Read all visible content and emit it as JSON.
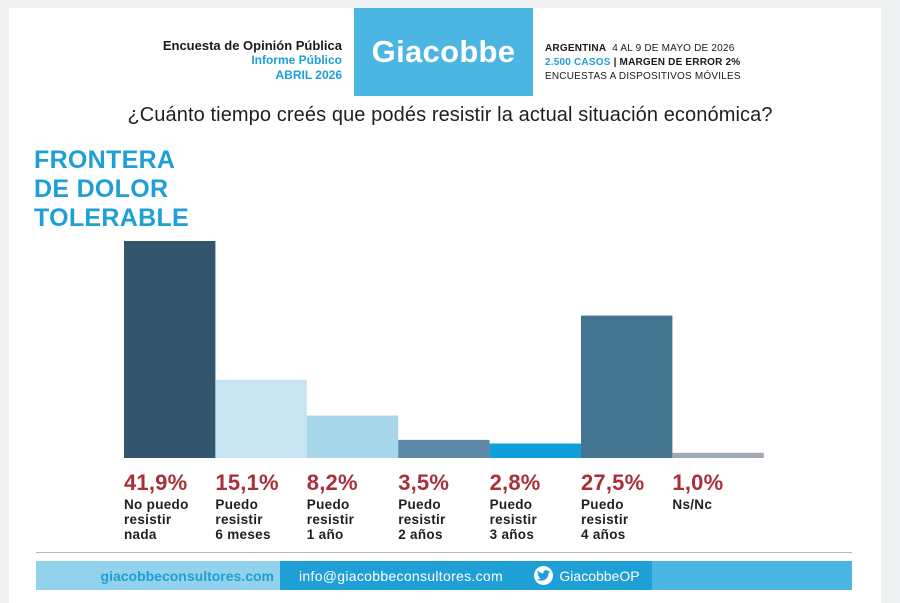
{
  "header": {
    "survey_title": "Encuesta de Opinión Pública",
    "report_type": "Informe Público",
    "period": "ABRIL 2026",
    "logo_text": "Giacobbe",
    "country": "ARGENTINA",
    "dates": "4 AL 9 DE MAYO DE 2026",
    "cases": "2.500 CASOS",
    "margin": "| MARGEN DE ERROR 2%",
    "method": "ENCUESTAS A DISPOSITIVOS MÓVILES"
  },
  "question": "¿Cuánto tiempo creés que podés resistir la actual situación económica?",
  "section_title": [
    "FRONTERA",
    "DE DOLOR",
    "TOLERABLE"
  ],
  "chart_data": {
    "type": "bar",
    "categories": [
      "No puedo resistir nada",
      "Puedo resistir 6 meses",
      "Puedo resistir 1 año",
      "Puedo resistir 2 años",
      "Puedo resistir 3 años",
      "Puedo resistir 4 años",
      "Ns/Nc"
    ],
    "category_lines": [
      [
        "No puedo",
        "resistir",
        "nada"
      ],
      [
        "Puedo",
        "resistir",
        "6 meses"
      ],
      [
        "Puedo",
        "resistir",
        "1 año"
      ],
      [
        "Puedo",
        "resistir",
        "2 años"
      ],
      [
        "Puedo",
        "resistir",
        "3 años"
      ],
      [
        "Puedo",
        "resistir",
        "4 años"
      ],
      [
        "Ns/Nc"
      ]
    ],
    "values": [
      41.9,
      15.1,
      8.2,
      3.5,
      2.8,
      27.5,
      1.0
    ],
    "labels": [
      "41,9%",
      "15,1%",
      "8,2%",
      "3,5%",
      "2,8%",
      "27,5%",
      "1,0%"
    ],
    "colors": [
      "#32566e",
      "#c6e4f1",
      "#a7d6eb",
      "#5e88a8",
      "#0fa0da",
      "#437490",
      "#a3a9b0"
    ],
    "ylim": [
      0,
      41.9
    ],
    "grid": false,
    "title": "",
    "xlabel": "",
    "ylabel": ""
  },
  "footer": {
    "website": "giacobbeconsultores.com",
    "email": "info@giacobbeconsultores.com",
    "twitter": "GiacobbeOP"
  }
}
